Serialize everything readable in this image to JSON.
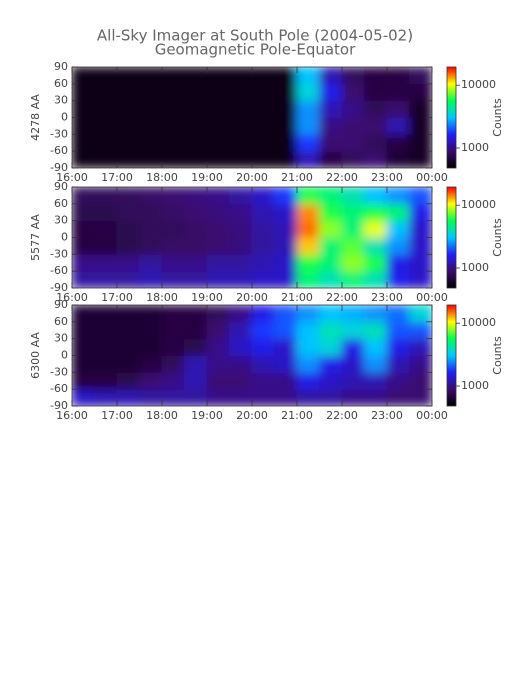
{
  "title": "All-Sky Imager at South Pole (2004-05-02)",
  "subtitle": "Geomagnetic Pole-Equator",
  "chart_data": [
    {
      "type": "heatmap",
      "ylabel": "4278 AA",
      "xbins": [
        16,
        16.5,
        17,
        17.5,
        18,
        18.5,
        19,
        19.5,
        20,
        20.5,
        21,
        21.5,
        22,
        22.5,
        23,
        23.5,
        24
      ],
      "ybins": [
        -90,
        -60,
        -30,
        0,
        30,
        60,
        90
      ],
      "z": [
        [
          550,
          550,
          550,
          550,
          550,
          550,
          550,
          550,
          550,
          550,
          1200,
          700,
          800,
          900,
          650,
          600
        ],
        [
          550,
          550,
          550,
          550,
          550,
          550,
          550,
          550,
          550,
          550,
          1800,
          900,
          900,
          800,
          700,
          600
        ],
        [
          550,
          550,
          550,
          550,
          550,
          550,
          550,
          550,
          550,
          550,
          2500,
          1000,
          900,
          900,
          1200,
          600
        ],
        [
          550,
          550,
          550,
          550,
          550,
          550,
          550,
          550,
          550,
          550,
          2500,
          1200,
          1000,
          800,
          900,
          600
        ],
        [
          550,
          550,
          550,
          550,
          550,
          550,
          550,
          550,
          550,
          550,
          3500,
          1500,
          900,
          700,
          700,
          700
        ],
        [
          550,
          550,
          550,
          550,
          550,
          550,
          550,
          550,
          550,
          550,
          3000,
          1200,
          800,
          700,
          700,
          800
        ]
      ],
      "xlim": [
        16,
        24
      ],
      "xticks": [
        {
          "value": 16,
          "label": "16:00"
        },
        {
          "value": 17,
          "label": "17:00"
        },
        {
          "value": 18,
          "label": "18:00"
        },
        {
          "value": 19,
          "label": "19:00"
        },
        {
          "value": 20,
          "label": "20:00"
        },
        {
          "value": 21,
          "label": "21:00"
        },
        {
          "value": 22,
          "label": "22:00"
        },
        {
          "value": 23,
          "label": "23:00"
        },
        {
          "value": 24,
          "label": "00:00"
        }
      ],
      "ylim": [
        -90,
        90
      ],
      "yticks": [
        90,
        60,
        30,
        0,
        -30,
        -60,
        -90
      ],
      "colorbar": {
        "label": "Counts",
        "zlim": [
          480,
          19500
        ],
        "log": true,
        "ticks": [
          10000,
          1000
        ],
        "colormap": [
          "#000000",
          "#3c0a6e",
          "#2020ff",
          "#00c8ff",
          "#00ff50",
          "#ffff00",
          "#ff0000"
        ]
      }
    },
    {
      "type": "heatmap",
      "ylabel": "5577 AA",
      "xbins": [
        16,
        16.5,
        17,
        17.5,
        18,
        18.5,
        19,
        19.5,
        20,
        20.5,
        21,
        21.5,
        22,
        22.5,
        23,
        23.5,
        24
      ],
      "ybins": [
        -90,
        -60,
        -30,
        0,
        30,
        60,
        90
      ],
      "z": [
        [
          1100,
          1100,
          1100,
          1200,
          1100,
          1100,
          1200,
          1200,
          1300,
          1300,
          5000,
          4000,
          5000,
          4000,
          1500,
          1300
        ],
        [
          1000,
          1000,
          1000,
          1100,
          1000,
          1000,
          1100,
          1100,
          1200,
          1300,
          6000,
          5000,
          8000,
          6000,
          1500,
          1300
        ],
        [
          700,
          700,
          750,
          800,
          850,
          850,
          900,
          950,
          1100,
          1200,
          12000,
          5000,
          7000,
          4000,
          2500,
          1300
        ],
        [
          700,
          700,
          750,
          800,
          800,
          850,
          900,
          950,
          1100,
          1200,
          15000,
          8000,
          5000,
          10000,
          3000,
          1300
        ],
        [
          750,
          750,
          800,
          800,
          850,
          900,
          950,
          1000,
          1200,
          1300,
          14000,
          6000,
          5000,
          6000,
          5000,
          1500
        ],
        [
          800,
          800,
          800,
          850,
          900,
          950,
          1000,
          1100,
          1300,
          1800,
          6000,
          5000,
          4000,
          3000,
          2500,
          2000
        ]
      ],
      "xlim": [
        16,
        24
      ],
      "xticks": [
        {
          "value": 16,
          "label": "16:00"
        },
        {
          "value": 17,
          "label": "17:00"
        },
        {
          "value": 18,
          "label": "18:00"
        },
        {
          "value": 19,
          "label": "19:00"
        },
        {
          "value": 20,
          "label": "20:00"
        },
        {
          "value": 21,
          "label": "21:00"
        },
        {
          "value": 22,
          "label": "22:00"
        },
        {
          "value": 23,
          "label": "23:00"
        },
        {
          "value": 24,
          "label": "00:00"
        }
      ],
      "ylim": [
        -90,
        90
      ],
      "yticks": [
        90,
        60,
        30,
        0,
        -30,
        -60,
        -90
      ],
      "colorbar": {
        "label": "Counts",
        "zlim": [
          480,
          19500
        ],
        "log": true,
        "ticks": [
          10000,
          1000
        ],
        "colormap": [
          "#000000",
          "#3c0a6e",
          "#2020ff",
          "#00c8ff",
          "#00ff50",
          "#ffff00",
          "#ff0000"
        ]
      }
    },
    {
      "type": "heatmap",
      "ylabel": "6300 AA",
      "xbins": [
        16,
        16.5,
        17,
        17.5,
        18,
        18.5,
        19,
        19.5,
        20,
        20.5,
        21,
        21.5,
        22,
        22.5,
        23,
        23.5,
        24
      ],
      "ybins": [
        -90,
        -60,
        -30,
        0,
        30,
        60,
        90
      ],
      "z": [
        [
          1300,
          1200,
          1200,
          1100,
          1100,
          1100,
          1000,
          1000,
          1000,
          1000,
          1100,
          1100,
          1000,
          1000,
          900,
          900
        ],
        [
          700,
          700,
          750,
          900,
          1000,
          1200,
          900,
          900,
          1000,
          1000,
          1500,
          1300,
          1200,
          1200,
          1000,
          900
        ],
        [
          650,
          650,
          650,
          700,
          800,
          1200,
          1000,
          1000,
          1200,
          1300,
          2500,
          1500,
          1300,
          2500,
          1200,
          1000
        ],
        [
          650,
          650,
          650,
          650,
          700,
          750,
          1000,
          1300,
          1500,
          1300,
          3000,
          3500,
          1500,
          3000,
          1500,
          1200
        ],
        [
          650,
          650,
          650,
          650,
          700,
          700,
          900,
          1200,
          1800,
          2000,
          3000,
          4000,
          3500,
          4000,
          2000,
          2000
        ],
        [
          650,
          650,
          650,
          650,
          700,
          700,
          800,
          1000,
          1500,
          2000,
          2500,
          3000,
          2800,
          2500,
          2200,
          3500
        ]
      ],
      "xlim": [
        16,
        24
      ],
      "xticks": [
        {
          "value": 16,
          "label": "16:00"
        },
        {
          "value": 17,
          "label": "17:00"
        },
        {
          "value": 18,
          "label": "18:00"
        },
        {
          "value": 19,
          "label": "19:00"
        },
        {
          "value": 20,
          "label": "20:00"
        },
        {
          "value": 21,
          "label": "21:00"
        },
        {
          "value": 22,
          "label": "22:00"
        },
        {
          "value": 23,
          "label": "23:00"
        },
        {
          "value": 24,
          "label": "00:00"
        }
      ],
      "ylim": [
        -90,
        90
      ],
      "yticks": [
        90,
        60,
        30,
        0,
        -30,
        -60,
        -90
      ],
      "colorbar": {
        "label": "Counts",
        "zlim": [
          480,
          19500
        ],
        "log": true,
        "ticks": [
          10000,
          1000
        ],
        "colormap": [
          "#000000",
          "#3c0a6e",
          "#2020ff",
          "#00c8ff",
          "#00ff50",
          "#ffff00",
          "#ff0000"
        ]
      }
    }
  ]
}
